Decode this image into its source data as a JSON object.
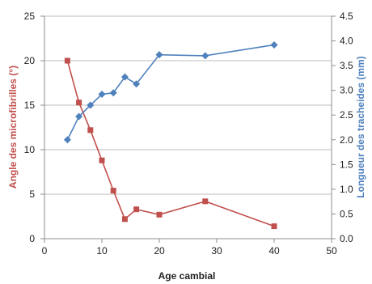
{
  "chart_data": {
    "type": "line",
    "title": "",
    "xlabel": "Age cambial",
    "ylabel_left": "Angle des microfibrilles (°)",
    "ylabel_right": "Longueur des tracheides (mm)",
    "xlim": [
      0,
      50
    ],
    "xticks": [
      0,
      10,
      20,
      30,
      40,
      50
    ],
    "ylim_left": [
      0,
      25
    ],
    "yticks_left": [
      0,
      5,
      10,
      15,
      20,
      25
    ],
    "ylim_right": [
      0.0,
      4.5
    ],
    "yticks_right": [
      "0.0",
      "0.5",
      "1.0",
      "1.5",
      "2.0",
      "2.5",
      "3.0",
      "3.5",
      "4.0",
      "4.5"
    ],
    "grid": "horizontal",
    "legend": "none",
    "series": [
      {
        "axis": "left",
        "color": "#c0504d",
        "marker": "square",
        "x": [
          4,
          6,
          8,
          10,
          12,
          14,
          16,
          20,
          28,
          40
        ],
        "y": [
          20.0,
          15.3,
          12.2,
          8.8,
          5.4,
          2.2,
          3.3,
          2.7,
          4.2,
          1.4
        ]
      },
      {
        "axis": "right",
        "color": "#4f81bd",
        "marker": "diamond",
        "x": [
          4,
          6,
          8,
          10,
          12,
          14,
          16,
          20,
          28,
          40
        ],
        "y": [
          2.0,
          2.47,
          2.7,
          2.92,
          2.95,
          3.27,
          3.13,
          3.72,
          3.7,
          3.92
        ]
      }
    ]
  },
  "colors": {
    "left_axis_title": "#c0504d",
    "right_axis_title": "#4f81bd"
  }
}
